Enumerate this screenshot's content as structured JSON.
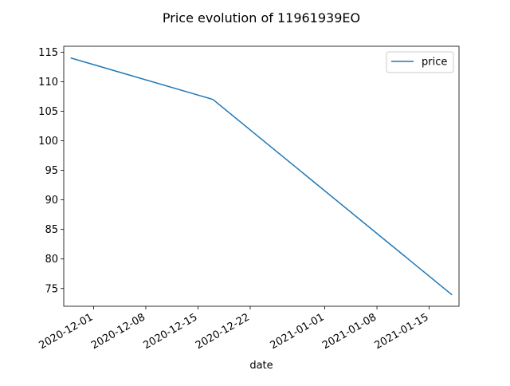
{
  "chart_data": {
    "type": "line",
    "title": "Price evolution of 11961939EO",
    "xlabel": "date",
    "ylabel": "",
    "x_type": "date",
    "x_ticks": [
      "2020-12-01",
      "2020-12-08",
      "2020-12-15",
      "2020-12-22",
      "2021-01-01",
      "2021-01-08",
      "2021-01-15"
    ],
    "xlim": [
      "2020-11-27",
      "2021-01-19"
    ],
    "y_ticks": [
      75,
      80,
      85,
      90,
      95,
      100,
      105,
      110,
      115
    ],
    "ylim": [
      72,
      116
    ],
    "grid": false,
    "legend_position": "upper right",
    "series": [
      {
        "name": "price",
        "color": "#1f77b4",
        "x": [
          "2020-11-28",
          "2020-12-17",
          "2021-01-18"
        ],
        "values": [
          114,
          107,
          74
        ]
      }
    ]
  }
}
